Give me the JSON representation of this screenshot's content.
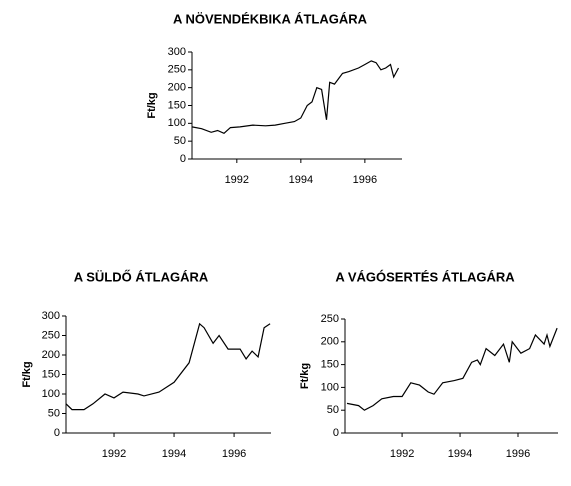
{
  "chart_data": [
    {
      "type": "line",
      "title": "A NÖVENDÉKBIKA ÁTLAGÁRA",
      "ylabel": "Ft/kg",
      "color": "#000000",
      "grid": false,
      "xlim": [
        1990.6,
        1997.16
      ],
      "xticks": [
        1992,
        1994,
        1996
      ],
      "ylim": [
        0,
        300
      ],
      "yticks": [
        0,
        50,
        100,
        150,
        200,
        250,
        300
      ],
      "x": [
        1990.6,
        1990.9,
        1991.2,
        1991.4,
        1991.6,
        1991.8,
        1992.1,
        1992.5,
        1992.9,
        1993.2,
        1993.5,
        1993.8,
        1994.0,
        1994.2,
        1994.35,
        1994.5,
        1994.65,
        1994.8,
        1994.9,
        1995.05,
        1995.3,
        1995.5,
        1995.8,
        1996.0,
        1996.2,
        1996.35,
        1996.5,
        1996.65,
        1996.8,
        1996.9,
        1997.05
      ],
      "values": [
        90,
        85,
        75,
        80,
        72,
        88,
        90,
        95,
        93,
        95,
        100,
        105,
        115,
        150,
        160,
        200,
        195,
        110,
        215,
        210,
        240,
        245,
        255,
        265,
        275,
        270,
        250,
        255,
        265,
        230,
        255
      ]
    },
    {
      "type": "line",
      "title": "A SÜLDŐ ÁTLAGÁRA",
      "ylabel": "Ft/kg",
      "color": "#000000",
      "grid": false,
      "xlim": [
        1990.4,
        1997.23
      ],
      "xticks": [
        1992,
        1994,
        1996
      ],
      "ylim": [
        0,
        300
      ],
      "yticks": [
        0,
        50,
        100,
        150,
        200,
        250,
        300
      ],
      "x": [
        1990.4,
        1990.6,
        1991.0,
        1991.3,
        1991.7,
        1992.0,
        1992.3,
        1992.8,
        1993.0,
        1993.5,
        1994.0,
        1994.5,
        1994.85,
        1995.0,
        1995.3,
        1995.5,
        1995.8,
        1996.2,
        1996.4,
        1996.6,
        1996.8,
        1997.0,
        1997.2
      ],
      "values": [
        75,
        60,
        60,
        75,
        100,
        90,
        105,
        100,
        95,
        105,
        130,
        180,
        280,
        270,
        230,
        250,
        215,
        215,
        190,
        210,
        195,
        270,
        280
      ]
    },
    {
      "type": "line",
      "title": "A VÁGÓSERTÉS ÁTLAGÁRA",
      "ylabel": "Ft/kg",
      "color": "#000000",
      "grid": false,
      "xlim": [
        1990.03,
        1997.38
      ],
      "xticks": [
        1992,
        1994,
        1996
      ],
      "ylim": [
        0,
        250
      ],
      "yticks": [
        0,
        50,
        100,
        150,
        200,
        250
      ],
      "x": [
        1990.1,
        1990.5,
        1990.7,
        1991.0,
        1991.3,
        1991.7,
        1992.0,
        1992.3,
        1992.6,
        1992.9,
        1993.1,
        1993.4,
        1993.8,
        1994.1,
        1994.4,
        1994.6,
        1994.7,
        1994.9,
        1995.2,
        1995.5,
        1995.7,
        1995.8,
        1996.1,
        1996.4,
        1996.6,
        1996.9,
        1997.0,
        1997.1,
        1997.35
      ],
      "values": [
        65,
        60,
        50,
        60,
        75,
        80,
        80,
        110,
        105,
        90,
        85,
        110,
        115,
        120,
        155,
        160,
        150,
        185,
        170,
        195,
        155,
        200,
        175,
        185,
        215,
        195,
        215,
        190,
        230
      ]
    }
  ]
}
